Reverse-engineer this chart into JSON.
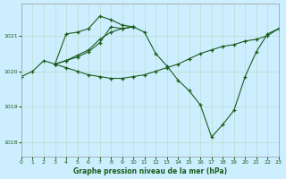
{
  "background_color": "#cceeff",
  "grid_color": "#bbddcc",
  "line_color": "#1a5c1a",
  "marker_color": "#1a5c1a",
  "xlabel": "Graphe pression niveau de la mer (hPa)",
  "xlabel_color": "#1a5c1a",
  "tick_label_color": "#1a5c1a",
  "xlim": [
    0,
    23
  ],
  "ylim": [
    1017.6,
    1021.9
  ],
  "yticks": [
    1018,
    1019,
    1020,
    1021
  ],
  "xticks": [
    0,
    1,
    2,
    3,
    4,
    5,
    6,
    7,
    8,
    9,
    10,
    11,
    12,
    13,
    14,
    15,
    16,
    17,
    18,
    19,
    20,
    21,
    22,
    23
  ],
  "series": [
    {
      "x": [
        0,
        1,
        2,
        3,
        4,
        5,
        6,
        7,
        8,
        9,
        10,
        11,
        12,
        13,
        14,
        15,
        16,
        17,
        18,
        19,
        20,
        21,
        22,
        23
      ],
      "y": [
        1019.85,
        1020.0,
        1020.3,
        1020.2,
        1020.3,
        1020.4,
        1020.55,
        1020.8,
        1021.25,
        1021.2,
        1021.25,
        1021.1,
        1020.5,
        1020.15,
        1019.75,
        1019.45,
        1019.05,
        1018.15,
        1018.5,
        1018.9,
        1019.85,
        1020.55,
        1021.05,
        1021.2
      ]
    },
    {
      "x": [
        3,
        4,
        5,
        6,
        7,
        8,
        9,
        10
      ],
      "y": [
        1020.2,
        1021.05,
        1021.1,
        1021.2,
        1021.55,
        1021.45,
        1021.3,
        1021.25
      ]
    },
    {
      "x": [
        3,
        4,
        5,
        6,
        7,
        8,
        9,
        10
      ],
      "y": [
        1020.2,
        1020.3,
        1020.45,
        1020.6,
        1020.9,
        1021.1,
        1021.2,
        1021.25
      ]
    },
    {
      "x": [
        3,
        4,
        5,
        6,
        7,
        8,
        9,
        10,
        11,
        12,
        13,
        14,
        15,
        16,
        17,
        18,
        19,
        20,
        21,
        22,
        23
      ],
      "y": [
        1020.2,
        1020.1,
        1020.0,
        1019.9,
        1019.85,
        1019.8,
        1019.8,
        1019.85,
        1019.9,
        1020.0,
        1020.1,
        1020.2,
        1020.35,
        1020.5,
        1020.6,
        1020.7,
        1020.75,
        1020.85,
        1020.9,
        1021.0,
        1021.2
      ]
    }
  ]
}
